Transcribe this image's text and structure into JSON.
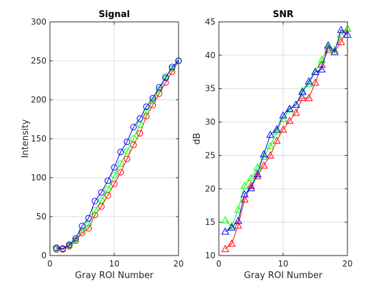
{
  "chart_data": [
    {
      "type": "line",
      "title": "Signal",
      "xlabel": "Gray ROI Number",
      "ylabel": "Intensity",
      "xlim": [
        0,
        20
      ],
      "ylim": [
        0,
        300
      ],
      "xticks": [
        0,
        10,
        20
      ],
      "yticks": [
        0,
        50,
        100,
        150,
        200,
        250,
        300
      ],
      "grid": true,
      "marker": "circle",
      "x": [
        1,
        2,
        3,
        4,
        5,
        6,
        7,
        8,
        9,
        10,
        11,
        12,
        13,
        14,
        15,
        16,
        17,
        18,
        19,
        20
      ],
      "series": [
        {
          "color": "#ff0000",
          "values": [
            8,
            8,
            12,
            19,
            29,
            35,
            52,
            63,
            77,
            92,
            107,
            124,
            142,
            157,
            179,
            193,
            208,
            222,
            236,
            250
          ]
        },
        {
          "color": "#00ff00",
          "values": [
            9,
            9,
            13,
            20,
            32,
            40,
            58,
            71,
            85,
            103,
            118,
            134,
            150,
            168,
            185,
            199,
            213,
            230,
            240,
            250
          ]
        },
        {
          "color": "#0000ff",
          "values": [
            10,
            9,
            14,
            22,
            38,
            48,
            70,
            81,
            96,
            113,
            133,
            146,
            165,
            176,
            191,
            202,
            216,
            228,
            242,
            250
          ]
        }
      ]
    },
    {
      "type": "line",
      "title": "SNR",
      "xlabel": "Gray ROI Number",
      "ylabel": "dB",
      "xlim": [
        0,
        20
      ],
      "ylim": [
        10,
        45
      ],
      "xticks": [
        0,
        10,
        20
      ],
      "yticks": [
        10,
        15,
        20,
        25,
        30,
        35,
        40,
        45
      ],
      "grid": true,
      "marker": "triangle",
      "x": [
        1,
        2,
        3,
        4,
        5,
        6,
        7,
        8,
        9,
        10,
        11,
        12,
        13,
        14,
        15,
        16,
        17,
        18,
        19,
        20
      ],
      "series": [
        {
          "color": "#ff0000",
          "values": [
            11,
            11.8,
            14.5,
            18.4,
            20.5,
            21.9,
            23.5,
            25,
            27.2,
            28.9,
            30.2,
            31.4,
            33.6,
            33.6,
            35.9,
            38.6,
            40.8,
            40.5,
            42,
            44
          ]
        },
        {
          "color": "#00ff00",
          "values": [
            15.3,
            14.4,
            16.9,
            20.5,
            21.6,
            23.2,
            24.8,
            26.4,
            28.6,
            30.5,
            31.9,
            32.6,
            34.7,
            35.7,
            37.6,
            39.3,
            41.2,
            40.8,
            43.1,
            44
          ]
        },
        {
          "color": "#0000ff",
          "values": [
            13.6,
            14.2,
            15.2,
            19.2,
            20.1,
            22.2,
            25.2,
            28.1,
            28.9,
            31,
            32,
            32.6,
            34.5,
            36.1,
            37.5,
            37.9,
            41.5,
            40.5,
            43.8,
            43.1
          ]
        }
      ]
    }
  ]
}
